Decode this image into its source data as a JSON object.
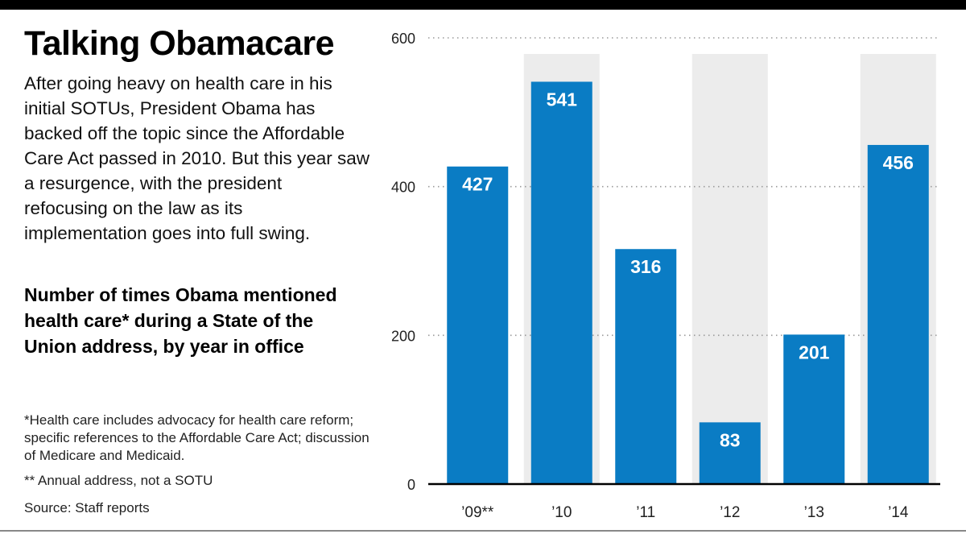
{
  "title": "Talking Obamacare",
  "intro": "After going heavy on health care in his initial SOTUs, President Obama has backed off the topic since the Affordable Care Act passed in 2010. But this year saw a resurgence, with the president refocusing on the law as its implementation goes into full swing.",
  "notes": {
    "footnote1": "*Health care includes advocacy for health care reform; specific references to the Affordable Care Act; discussion of Medicare and Medicaid.",
    "footnote2": "** Annual address, not a SOTU",
    "source": "Source: Staff reports"
  },
  "colors": {
    "bar": "#0a7cc4",
    "shade": "#ececec",
    "label": "#ffffff",
    "axis": "#000000",
    "grid": "#999999"
  },
  "chart_data": {
    "type": "bar",
    "title": "Number of times Obama mentioned health care* during a State of the Union address, by year in office",
    "categories": [
      "’09**",
      "’10",
      "’11",
      "’12",
      "’13",
      "’14"
    ],
    "values": [
      427,
      541,
      316,
      83,
      201,
      456
    ],
    "value_labels": [
      "427",
      "541",
      "316",
      "83",
      "201",
      "456"
    ],
    "shaded_categories": [
      "’10",
      "’12",
      "’14"
    ],
    "ylim": [
      0,
      600
    ],
    "yticks": [
      0,
      200,
      400,
      600
    ],
    "ytick_labels": [
      "0",
      "200",
      "400",
      "600"
    ],
    "grid": true,
    "grid_style": "dotted",
    "xlabel": "",
    "ylabel": ""
  }
}
